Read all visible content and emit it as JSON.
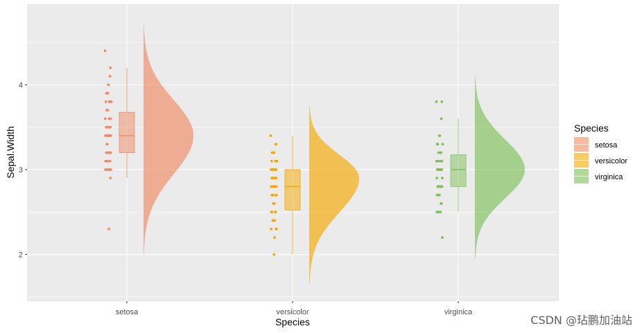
{
  "chart_data": {
    "type": "raincloud",
    "xlabel": "Species",
    "ylabel": "Sepal.Width",
    "categories": [
      "setosa",
      "versicolor",
      "virginica"
    ],
    "ylim": [
      1.45,
      4.95
    ],
    "yticks": [
      2,
      3,
      4
    ],
    "grid": true,
    "legend": {
      "title": "Species",
      "placement": "right",
      "entries": [
        "setosa",
        "versicolor",
        "virginica"
      ]
    },
    "colors": {
      "setosa": "#f08a63",
      "versicolor": "#f5a800",
      "virginica": "#7fc05a"
    },
    "series": [
      {
        "name": "setosa",
        "box": {
          "min": 2.9,
          "q1": 3.2,
          "median": 3.4,
          "q3": 3.675,
          "max": 4.2
        },
        "points": [
          4.4,
          4.2,
          4.1,
          4.0,
          3.9,
          3.9,
          3.8,
          3.8,
          3.8,
          3.8,
          3.7,
          3.7,
          3.7,
          3.6,
          3.6,
          3.6,
          3.5,
          3.5,
          3.5,
          3.5,
          3.5,
          3.4,
          3.4,
          3.4,
          3.4,
          3.4,
          3.4,
          3.4,
          3.4,
          3.4,
          3.3,
          3.3,
          3.2,
          3.2,
          3.2,
          3.2,
          3.2,
          3.1,
          3.1,
          3.1,
          3.1,
          3.0,
          3.0,
          3.0,
          3.0,
          3.0,
          3.0,
          2.9,
          2.3
        ],
        "density": {
          "mode": 3.4,
          "min": 2.0,
          "max": 4.7
        }
      },
      {
        "name": "versicolor",
        "box": {
          "min": 2.0,
          "q1": 2.525,
          "median": 2.8,
          "q3": 3.0,
          "max": 3.4
        },
        "points": [
          3.4,
          3.3,
          3.3,
          3.2,
          3.2,
          3.2,
          3.1,
          3.1,
          3.1,
          3.0,
          3.0,
          3.0,
          3.0,
          3.0,
          3.0,
          3.0,
          3.0,
          2.9,
          2.9,
          2.9,
          2.9,
          2.9,
          2.9,
          2.9,
          2.8,
          2.8,
          2.8,
          2.8,
          2.8,
          2.8,
          2.7,
          2.7,
          2.7,
          2.7,
          2.7,
          2.6,
          2.6,
          2.6,
          2.5,
          2.5,
          2.5,
          2.5,
          2.4,
          2.4,
          2.4,
          2.3,
          2.3,
          2.3,
          2.2,
          2.0
        ],
        "density": {
          "mode": 2.9,
          "min": 1.65,
          "max": 3.75
        }
      },
      {
        "name": "virginica",
        "box": {
          "min": 2.5,
          "q1": 2.8,
          "median": 3.0,
          "q3": 3.175,
          "max": 3.6
        },
        "points": [
          3.8,
          3.8,
          3.6,
          3.4,
          3.4,
          3.3,
          3.3,
          3.3,
          3.2,
          3.2,
          3.2,
          3.2,
          3.1,
          3.1,
          3.1,
          3.1,
          3.0,
          3.0,
          3.0,
          3.0,
          3.0,
          3.0,
          3.0,
          3.0,
          3.0,
          3.0,
          2.9,
          2.9,
          2.8,
          2.8,
          2.8,
          2.8,
          2.8,
          2.8,
          2.8,
          2.8,
          2.7,
          2.7,
          2.7,
          2.7,
          2.6,
          2.6,
          2.5,
          2.5,
          2.5,
          2.5,
          2.2
        ],
        "density": {
          "mode": 3.0,
          "min": 1.95,
          "max": 4.1
        }
      }
    ]
  },
  "watermark": "CSDN @玷鹏加油站"
}
